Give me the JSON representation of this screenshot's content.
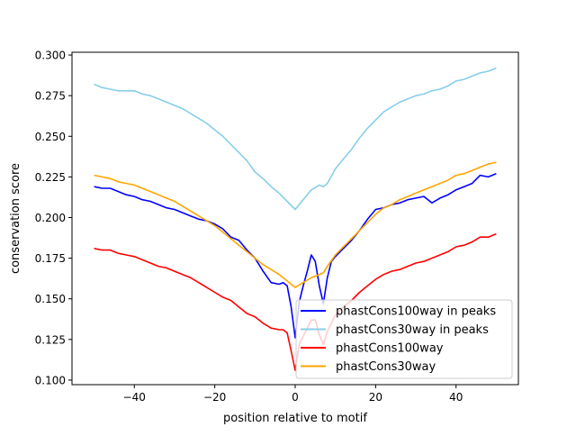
{
  "chart_data": {
    "type": "line",
    "title": "",
    "xlabel": "position relative to motif",
    "ylabel": "conservation score",
    "xlim": [
      -55.5,
      55.5
    ],
    "ylim": [
      0.0972,
      0.3017
    ],
    "xticks": [
      -40,
      -20,
      0,
      20,
      40
    ],
    "xtick_labels": [
      "−40",
      "−20",
      "0",
      "20",
      "40"
    ],
    "yticks": [
      0.1,
      0.125,
      0.15,
      0.175,
      0.2,
      0.225,
      0.25,
      0.275,
      0.3
    ],
    "ytick_labels": [
      "0.100",
      "0.125",
      "0.150",
      "0.175",
      "0.200",
      "0.225",
      "0.250",
      "0.275",
      "0.300"
    ],
    "grid": false,
    "legend_position": "lower-right",
    "series": [
      {
        "name": "phastCons100way in peaks",
        "color": "#0000ff",
        "x": [
          -50,
          -48,
          -46,
          -44,
          -42,
          -40,
          -38,
          -36,
          -34,
          -32,
          -30,
          -28,
          -26,
          -24,
          -22,
          -20,
          -18,
          -16,
          -14,
          -12,
          -10,
          -8,
          -6,
          -4,
          -3,
          -2,
          -1,
          0,
          1,
          2,
          3,
          4,
          5,
          6,
          7,
          8,
          9,
          10,
          12,
          14,
          16,
          18,
          20,
          22,
          24,
          26,
          28,
          30,
          32,
          34,
          36,
          38,
          40,
          42,
          44,
          46,
          48,
          50
        ],
        "y": [
          0.219,
          0.218,
          0.218,
          0.216,
          0.214,
          0.213,
          0.211,
          0.21,
          0.208,
          0.206,
          0.205,
          0.203,
          0.201,
          0.199,
          0.198,
          0.196,
          0.193,
          0.188,
          0.186,
          0.18,
          0.175,
          0.167,
          0.16,
          0.159,
          0.16,
          0.158,
          0.145,
          0.126,
          0.148,
          0.158,
          0.167,
          0.177,
          0.173,
          0.158,
          0.147,
          0.163,
          0.173,
          0.176,
          0.181,
          0.186,
          0.192,
          0.199,
          0.205,
          0.206,
          0.208,
          0.209,
          0.211,
          0.212,
          0.213,
          0.209,
          0.212,
          0.214,
          0.217,
          0.219,
          0.221,
          0.226,
          0.225,
          0.227
        ]
      },
      {
        "name": "phastCons30way in peaks",
        "color": "#87ceeb",
        "x": [
          -50,
          -48,
          -46,
          -44,
          -42,
          -40,
          -38,
          -36,
          -34,
          -32,
          -30,
          -28,
          -26,
          -24,
          -22,
          -20,
          -18,
          -16,
          -14,
          -12,
          -10,
          -8,
          -6,
          -4,
          -2,
          0,
          2,
          4,
          6,
          7,
          8,
          10,
          12,
          14,
          16,
          18,
          20,
          22,
          24,
          26,
          28,
          30,
          32,
          34,
          36,
          38,
          40,
          42,
          44,
          46,
          48,
          50
        ],
        "y": [
          0.282,
          0.28,
          0.279,
          0.278,
          0.278,
          0.278,
          0.276,
          0.275,
          0.273,
          0.271,
          0.269,
          0.267,
          0.264,
          0.261,
          0.258,
          0.254,
          0.25,
          0.245,
          0.24,
          0.235,
          0.228,
          0.224,
          0.219,
          0.215,
          0.21,
          0.205,
          0.211,
          0.217,
          0.22,
          0.219,
          0.221,
          0.23,
          0.236,
          0.242,
          0.249,
          0.255,
          0.26,
          0.265,
          0.268,
          0.271,
          0.273,
          0.275,
          0.276,
          0.278,
          0.279,
          0.281,
          0.284,
          0.285,
          0.287,
          0.289,
          0.29,
          0.292
        ]
      },
      {
        "name": "phastCons100way",
        "color": "#ff0000",
        "x": [
          -50,
          -48,
          -46,
          -44,
          -42,
          -40,
          -38,
          -36,
          -34,
          -32,
          -30,
          -28,
          -26,
          -24,
          -22,
          -20,
          -18,
          -16,
          -14,
          -12,
          -10,
          -8,
          -6,
          -4,
          -3,
          -2,
          -1,
          0,
          1,
          2,
          3,
          4,
          5,
          6,
          7,
          8,
          10,
          12,
          14,
          16,
          18,
          20,
          22,
          24,
          26,
          28,
          30,
          32,
          34,
          36,
          38,
          40,
          42,
          44,
          46,
          48,
          50
        ],
        "y": [
          0.181,
          0.18,
          0.18,
          0.178,
          0.177,
          0.176,
          0.174,
          0.172,
          0.17,
          0.169,
          0.167,
          0.165,
          0.163,
          0.16,
          0.157,
          0.154,
          0.151,
          0.149,
          0.145,
          0.141,
          0.139,
          0.135,
          0.132,
          0.131,
          0.131,
          0.129,
          0.118,
          0.106,
          0.122,
          0.127,
          0.132,
          0.137,
          0.137,
          0.128,
          0.122,
          0.13,
          0.14,
          0.145,
          0.149,
          0.154,
          0.158,
          0.162,
          0.165,
          0.167,
          0.168,
          0.17,
          0.172,
          0.173,
          0.175,
          0.177,
          0.179,
          0.182,
          0.183,
          0.185,
          0.188,
          0.188,
          0.19
        ]
      },
      {
        "name": "phastCons30way",
        "color": "#ffa500",
        "x": [
          -50,
          -48,
          -46,
          -44,
          -42,
          -40,
          -38,
          -36,
          -34,
          -32,
          -30,
          -28,
          -26,
          -24,
          -22,
          -20,
          -18,
          -16,
          -14,
          -12,
          -10,
          -8,
          -6,
          -4,
          -2,
          0,
          2,
          4,
          6,
          7,
          8,
          10,
          12,
          14,
          16,
          18,
          20,
          22,
          24,
          26,
          28,
          30,
          32,
          34,
          36,
          38,
          40,
          42,
          44,
          46,
          48,
          50
        ],
        "y": [
          0.226,
          0.225,
          0.224,
          0.222,
          0.221,
          0.22,
          0.218,
          0.216,
          0.214,
          0.212,
          0.21,
          0.207,
          0.204,
          0.201,
          0.198,
          0.195,
          0.191,
          0.187,
          0.183,
          0.179,
          0.175,
          0.171,
          0.168,
          0.165,
          0.161,
          0.157,
          0.16,
          0.163,
          0.165,
          0.166,
          0.17,
          0.177,
          0.182,
          0.187,
          0.192,
          0.197,
          0.202,
          0.206,
          0.208,
          0.211,
          0.213,
          0.215,
          0.217,
          0.219,
          0.221,
          0.223,
          0.226,
          0.227,
          0.229,
          0.231,
          0.233,
          0.234
        ]
      }
    ]
  }
}
